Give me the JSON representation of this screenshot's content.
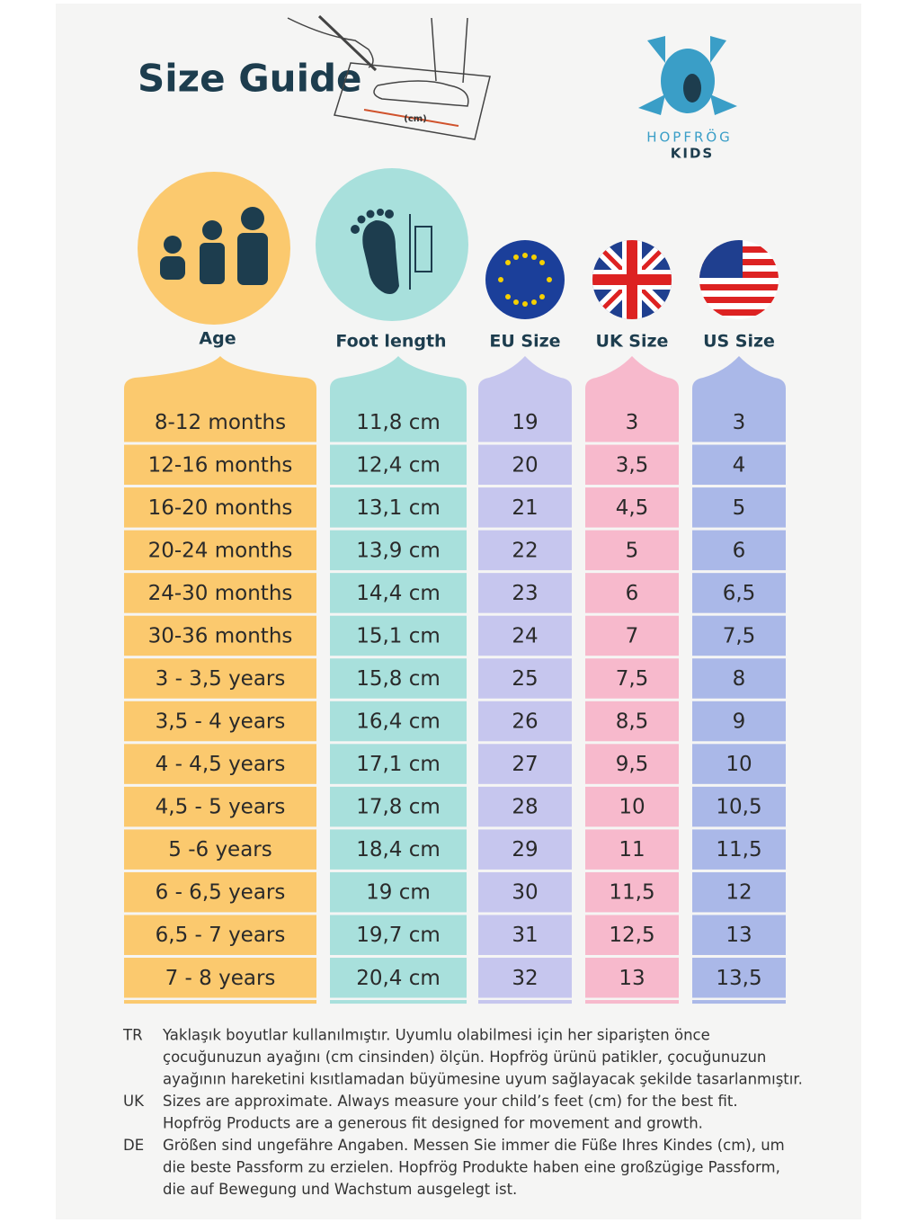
{
  "header": {
    "title": "Size Guide",
    "measure_label": "(cm)",
    "brand": "HOPFRÖG",
    "brand_sub": "KIDS"
  },
  "table": {
    "columns": [
      "Age",
      "Foot length",
      "EU Size",
      "UK Size",
      "US Size"
    ],
    "rows": [
      [
        "8-12 months",
        "11,8 cm",
        "19",
        "3",
        "3"
      ],
      [
        "12-16 months",
        "12,4 cm",
        "20",
        "3,5",
        "4"
      ],
      [
        "16-20 months",
        "13,1 cm",
        "21",
        "4,5",
        "5"
      ],
      [
        "20-24 months",
        "13,9 cm",
        "22",
        "5",
        "6"
      ],
      [
        "24-30 months",
        "14,4 cm",
        "23",
        "6",
        "6,5"
      ],
      [
        "30-36 months",
        "15,1 cm",
        "24",
        "7",
        "7,5"
      ],
      [
        "3 - 3,5 years",
        "15,8 cm",
        "25",
        "7,5",
        "8"
      ],
      [
        "3,5 - 4 years",
        "16,4 cm",
        "26",
        "8,5",
        "9"
      ],
      [
        "4 - 4,5 years",
        "17,1 cm",
        "27",
        "9,5",
        "10"
      ],
      [
        "4,5 - 5 years",
        "17,8 cm",
        "28",
        "10",
        "10,5"
      ],
      [
        "5 -6 years",
        "18,4 cm",
        "29",
        "11",
        "11,5"
      ],
      [
        "6 - 6,5 years",
        "19 cm",
        "30",
        "11,5",
        "12"
      ],
      [
        "6,5 - 7 years",
        "19,7 cm",
        "31",
        "12,5",
        "13"
      ],
      [
        "7 - 8 years",
        "20,4 cm",
        "32",
        "13",
        "13,5"
      ]
    ]
  },
  "notes": [
    {
      "lang": "TR",
      "lines": [
        "Yaklaşık boyutlar kullanılmıştır. Uyumlu olabilmesi için her siparişten önce",
        "çocuğunuzun ayağını (cm cinsinden) ölçün. Hopfrög ürünü patikler, çocuğunuzun",
        "ayağının hareketini kısıtlamadan büyümesine uyum sağlayacak şekilde tasarlanmıştır."
      ]
    },
    {
      "lang": "UK",
      "lines": [
        "Sizes are approximate. Always measure your child’s feet (cm) for the best fit.",
        "Hopfrög Products are a generous fit designed for movement and growth."
      ]
    },
    {
      "lang": "DE",
      "lines": [
        "Größen sind ungefähre Angaben. Messen Sie immer die Füße Ihres Kindes (cm), um",
        "die beste Passform zu erzielen. Hopfrög Produkte haben eine großzügige Passform,",
        "die auf Bewegung und Wachstum ausgelegt ist."
      ]
    }
  ]
}
